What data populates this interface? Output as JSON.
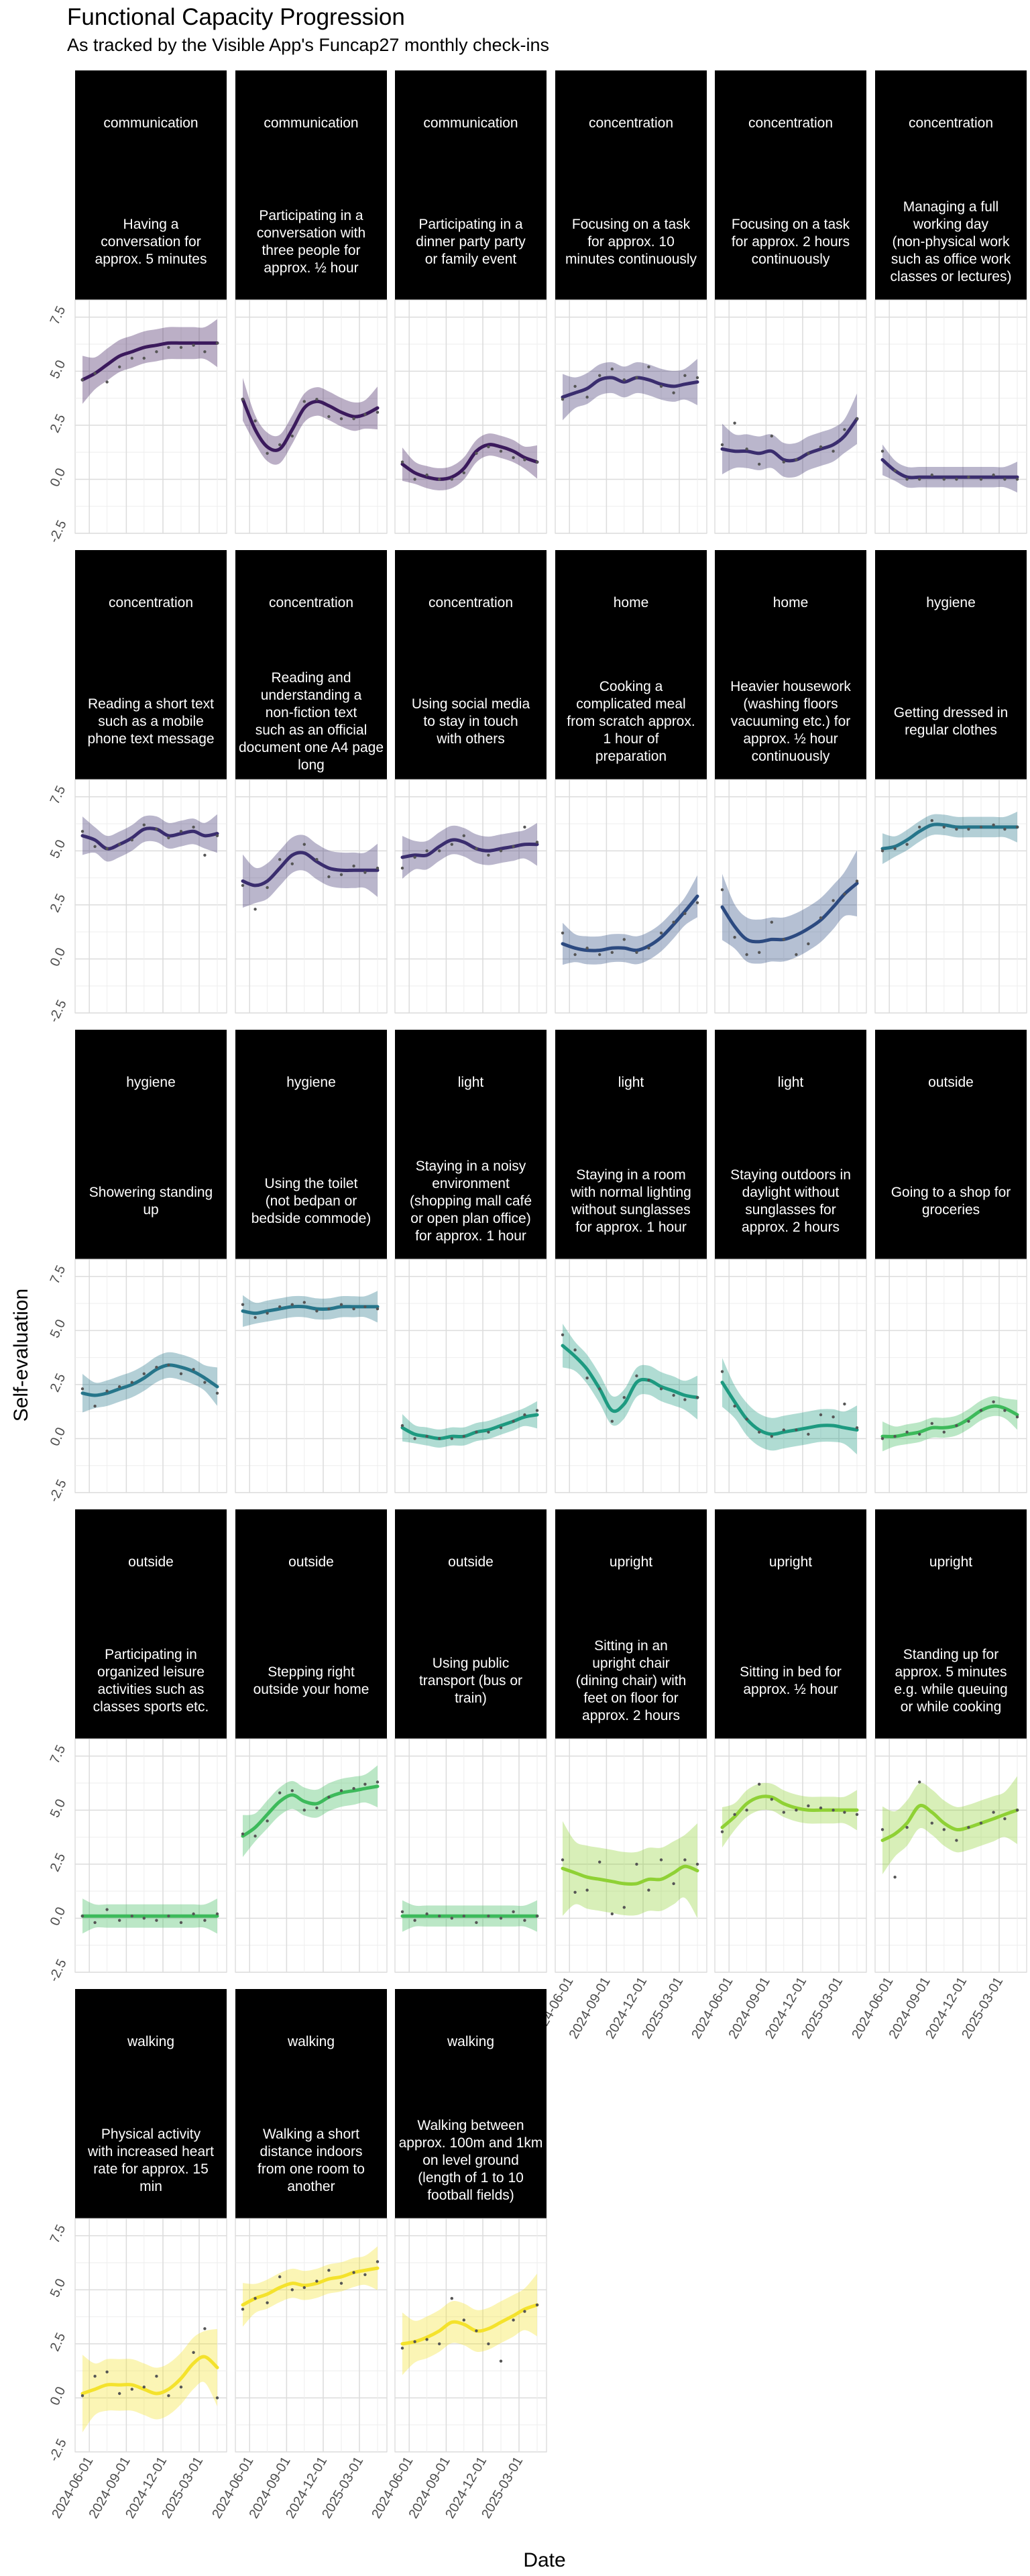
{
  "chart_data": {
    "type": "line",
    "title": "Functional Capacity Progression",
    "subtitle": "As tracked by the Visible App's Funcap27 monthly check-ins",
    "xlabel": "Date",
    "ylabel": "Self-evaluation",
    "ylim": [
      -2.5,
      8.3
    ],
    "y_ticks": [
      "-2.5",
      "0.0",
      "2.5",
      "5.0",
      "7.5"
    ],
    "x_ticks": [
      "2024-06-01",
      "2024-09-01",
      "2024-12-01",
      "2025-03-01"
    ],
    "x_dates": [
      "2024-05-15",
      "2024-06-15",
      "2024-07-15",
      "2024-08-15",
      "2024-09-15",
      "2024-10-15",
      "2024-11-15",
      "2024-12-15",
      "2025-01-15",
      "2025-02-15",
      "2025-03-15",
      "2025-04-15"
    ],
    "colors": {
      "communication": "#3b1a5c",
      "concentration": "#3a2d6e",
      "home": "#2c4a80",
      "hygiene": "#26758a",
      "light": "#1d9a80",
      "outside": "#3dba5b",
      "upright": "#8fd135",
      "walking": "#f4e22c",
      "strip_background": "#000000",
      "strip_text": "#ffffff",
      "grid": "#dcdcdc"
    },
    "panels": [
      {
        "category": "communication",
        "label": "Having a conversation for approx. 5 minutes",
        "line": [
          4.6,
          4.9,
          5.3,
          5.7,
          5.9,
          6.1,
          6.2,
          6.3,
          6.3,
          6.3,
          6.3,
          6.3
        ],
        "points": [
          4.6,
          4.9,
          4.5,
          5.2,
          5.6,
          5.6,
          5.9,
          6.1,
          6.1,
          6.2,
          5.9,
          6.3
        ]
      },
      {
        "category": "communication",
        "label": "Participating in a conversation with three people for approx. ½ hour",
        "line": [
          3.7,
          2.3,
          1.5,
          1.4,
          2.3,
          3.3,
          3.6,
          3.4,
          3.1,
          2.9,
          3.0,
          3.3
        ],
        "points": [
          3.7,
          2.7,
          1.2,
          1.6,
          2.0,
          3.6,
          3.7,
          2.9,
          2.8,
          2.8,
          3.0,
          3.1
        ]
      },
      {
        "category": "communication",
        "label": "Participating in a dinner party party or family event",
        "line": [
          0.7,
          0.3,
          0.1,
          0.0,
          0.1,
          0.5,
          1.3,
          1.6,
          1.5,
          1.3,
          1.0,
          0.8
        ],
        "points": [
          0.8,
          0.0,
          0.2,
          0.0,
          0.0,
          0.3,
          1.2,
          1.5,
          1.3,
          1.0,
          0.9,
          0.8
        ]
      },
      {
        "category": "concentration",
        "label": "Focusing on a task for approx. 10 minutes continuously",
        "line": [
          3.8,
          4.0,
          4.2,
          4.6,
          4.7,
          4.5,
          4.7,
          4.6,
          4.4,
          4.3,
          4.4,
          4.5
        ],
        "points": [
          3.7,
          4.3,
          3.8,
          4.8,
          5.1,
          4.6,
          4.7,
          5.2,
          4.3,
          4.0,
          4.8,
          4.7
        ]
      },
      {
        "category": "concentration",
        "label": "Focusing on a task for approx. 2 hours continuously",
        "line": [
          1.4,
          1.3,
          1.3,
          1.2,
          1.3,
          0.9,
          0.9,
          1.2,
          1.4,
          1.6,
          2.0,
          2.8
        ],
        "points": [
          1.6,
          2.6,
          1.4,
          0.7,
          2.0,
          0.8,
          0.9,
          1.2,
          1.5,
          1.3,
          2.3,
          2.8
        ]
      },
      {
        "category": "concentration",
        "label": "Managing a full working day (non-physical work such as office work classes or lectures)",
        "line": [
          0.9,
          0.4,
          0.1,
          0.1,
          0.1,
          0.1,
          0.1,
          0.1,
          0.1,
          0.1,
          0.1,
          0.1
        ],
        "points": [
          1.3,
          0.4,
          0.0,
          0.0,
          0.2,
          0.0,
          0.0,
          0.1,
          0.0,
          0.2,
          0.0,
          0.0
        ]
      },
      {
        "category": "concentration",
        "label": "Reading a short text such as a mobile phone text message",
        "line": [
          5.7,
          5.5,
          5.1,
          5.3,
          5.6,
          6.0,
          6.0,
          5.7,
          5.8,
          5.9,
          5.7,
          5.8
        ],
        "points": [
          5.9,
          5.2,
          5.1,
          5.3,
          5.5,
          6.2,
          6.0,
          5.6,
          5.9,
          6.1,
          4.8,
          5.7
        ]
      },
      {
        "category": "concentration",
        "label": "Reading and understanding a non-fiction text such as an official document one A4 page long",
        "line": [
          3.6,
          3.4,
          3.6,
          4.2,
          4.8,
          4.9,
          4.5,
          4.2,
          4.1,
          4.1,
          4.1,
          4.1
        ],
        "points": [
          3.4,
          2.3,
          3.3,
          4.6,
          4.4,
          5.3,
          4.6,
          3.8,
          3.9,
          4.3,
          4.0,
          4.2
        ]
      },
      {
        "category": "concentration",
        "label": "Using social media to stay in touch with others",
        "line": [
          4.7,
          4.8,
          4.8,
          5.2,
          5.5,
          5.4,
          5.1,
          5.0,
          5.1,
          5.2,
          5.3,
          5.3
        ],
        "points": [
          4.2,
          4.7,
          5.0,
          5.0,
          5.3,
          5.7,
          5.1,
          4.8,
          5.0,
          5.2,
          6.1,
          5.4
        ]
      },
      {
        "category": "home",
        "label": "Cooking a complicated meal from scratch approx. 1 hour of preparation",
        "line": [
          0.7,
          0.5,
          0.4,
          0.4,
          0.5,
          0.5,
          0.4,
          0.6,
          1.0,
          1.6,
          2.2,
          2.9
        ],
        "points": [
          1.2,
          0.2,
          0.5,
          0.2,
          0.3,
          0.9,
          0.3,
          0.5,
          1.2,
          1.7,
          2.1,
          2.6
        ]
      },
      {
        "category": "home",
        "label": "Heavier housework (washing floors vacuuming etc.) for approx. ½ hour continuously",
        "line": [
          2.4,
          1.5,
          0.9,
          0.8,
          0.9,
          0.9,
          1.1,
          1.4,
          1.8,
          2.4,
          3.0,
          3.5
        ],
        "points": [
          3.2,
          1.0,
          0.2,
          0.3,
          1.7,
          0.9,
          0.2,
          0.7,
          1.9,
          2.7,
          3.0,
          3.6
        ]
      },
      {
        "category": "hygiene",
        "label": "Getting dressed in regular clothes",
        "line": [
          5.1,
          5.2,
          5.5,
          5.9,
          6.2,
          6.2,
          6.1,
          6.1,
          6.1,
          6.1,
          6.1,
          6.1
        ],
        "points": [
          5.0,
          5.1,
          5.3,
          6.1,
          6.4,
          6.1,
          6.0,
          6.0,
          6.1,
          6.2,
          6.0,
          6.1
        ]
      },
      {
        "category": "hygiene",
        "label": "Showering standing up",
        "line": [
          2.1,
          2.0,
          2.1,
          2.3,
          2.5,
          2.8,
          3.2,
          3.4,
          3.3,
          3.1,
          2.8,
          2.4
        ],
        "points": [
          2.3,
          1.5,
          2.2,
          2.4,
          2.6,
          3.0,
          3.3,
          3.4,
          3.0,
          3.2,
          2.6,
          2.1
        ]
      },
      {
        "category": "hygiene",
        "label": "Using the toilet (not bedpan or bedside commode)",
        "line": [
          5.9,
          5.8,
          5.9,
          6.0,
          6.1,
          6.1,
          6.0,
          6.0,
          6.1,
          6.1,
          6.1,
          6.1
        ],
        "points": [
          6.2,
          5.6,
          5.8,
          6.1,
          6.2,
          6.3,
          5.9,
          6.0,
          6.2,
          6.0,
          6.1,
          6.0
        ]
      },
      {
        "category": "light",
        "label": "Staying in a noisy environment (shopping mall café or open plan office) for approx. 1 hour",
        "line": [
          0.5,
          0.2,
          0.1,
          0.0,
          0.1,
          0.1,
          0.3,
          0.4,
          0.6,
          0.8,
          1.0,
          1.1
        ],
        "points": [
          0.6,
          0.0,
          0.1,
          0.0,
          0.0,
          0.1,
          0.3,
          0.3,
          0.5,
          0.8,
          1.1,
          1.3
        ]
      },
      {
        "category": "light",
        "label": "Staying in a room with normal lighting without sunglasses for approx. 1 hour",
        "line": [
          4.3,
          3.8,
          3.2,
          2.3,
          1.3,
          1.6,
          2.6,
          2.7,
          2.4,
          2.2,
          2.0,
          1.9
        ],
        "points": [
          4.8,
          4.1,
          2.8,
          2.3,
          0.8,
          1.9,
          2.9,
          2.7,
          2.3,
          2.0,
          1.8,
          1.9
        ]
      },
      {
        "category": "light",
        "label": "Staying outdoors in daylight without sunglasses for approx. 2 hours",
        "line": [
          2.6,
          1.7,
          0.9,
          0.4,
          0.2,
          0.3,
          0.4,
          0.5,
          0.6,
          0.6,
          0.5,
          0.4
        ],
        "points": [
          3.1,
          1.5,
          0.9,
          0.3,
          0.1,
          0.4,
          0.4,
          0.2,
          1.1,
          1.0,
          1.6,
          0.5
        ]
      },
      {
        "category": "outside",
        "label": "Going to a shop for groceries",
        "line": [
          0.1,
          0.1,
          0.2,
          0.3,
          0.5,
          0.5,
          0.6,
          0.9,
          1.3,
          1.5,
          1.4,
          1.1
        ],
        "points": [
          0.0,
          0.1,
          0.3,
          0.2,
          0.7,
          0.3,
          0.6,
          0.8,
          1.3,
          1.7,
          1.3,
          1.0
        ]
      },
      {
        "category": "outside",
        "label": "Participating in organized leisure activities such as classes sports etc.",
        "line": [
          0.1,
          0.1,
          0.1,
          0.1,
          0.1,
          0.1,
          0.1,
          0.1,
          0.1,
          0.1,
          0.1,
          0.1
        ],
        "points": [
          0.1,
          -0.2,
          0.4,
          -0.1,
          0.1,
          0.0,
          -0.1,
          0.1,
          -0.2,
          0.2,
          -0.1,
          0.2
        ]
      },
      {
        "category": "outside",
        "label": "Stepping right outside your home",
        "line": [
          3.8,
          4.2,
          4.8,
          5.4,
          5.7,
          5.4,
          5.3,
          5.6,
          5.8,
          5.9,
          6.0,
          6.1
        ],
        "points": [
          3.9,
          3.8,
          4.5,
          5.8,
          5.9,
          5.0,
          5.1,
          5.6,
          5.9,
          6.0,
          6.2,
          6.3
        ]
      },
      {
        "category": "outside",
        "label": "Using public transport (bus or train)",
        "line": [
          0.1,
          0.1,
          0.1,
          0.1,
          0.1,
          0.1,
          0.1,
          0.1,
          0.1,
          0.1,
          0.1,
          0.1
        ],
        "points": [
          0.3,
          -0.1,
          0.2,
          0.1,
          0.0,
          0.1,
          -0.2,
          0.1,
          0.0,
          0.3,
          -0.1,
          0.1
        ]
      },
      {
        "category": "upright",
        "label": "Sitting in an upright chair (dining chair) with feet on floor for approx. 2 hours",
        "line": [
          2.3,
          2.1,
          1.9,
          1.8,
          1.7,
          1.6,
          1.6,
          1.8,
          1.8,
          2.1,
          2.4,
          2.2
        ],
        "points": [
          2.7,
          1.2,
          1.3,
          2.6,
          0.2,
          0.5,
          2.5,
          1.3,
          2.7,
          1.6,
          2.7,
          2.5
        ]
      },
      {
        "category": "upright",
        "label": "Sitting in bed for approx. ½ hour",
        "line": [
          4.2,
          4.7,
          5.3,
          5.6,
          5.6,
          5.3,
          5.1,
          5.0,
          5.0,
          5.0,
          5.0,
          5.0
        ],
        "points": [
          4.0,
          4.8,
          5.0,
          6.2,
          5.5,
          4.9,
          5.0,
          5.2,
          5.1,
          5.0,
          4.9,
          4.8
        ]
      },
      {
        "category": "upright",
        "label": "Standing up for approx. 5 minutes e.g. while queuing or while cooking",
        "line": [
          3.6,
          3.9,
          4.4,
          5.2,
          4.9,
          4.4,
          4.1,
          4.2,
          4.4,
          4.6,
          4.8,
          5.0
        ],
        "points": [
          4.1,
          1.9,
          4.2,
          6.3,
          4.4,
          4.1,
          3.6,
          4.2,
          4.4,
          4.9,
          4.6,
          5.0
        ]
      },
      {
        "category": "walking",
        "label": "Physical activity with increased heart rate for approx. 15 min",
        "line": [
          0.2,
          0.4,
          0.6,
          0.6,
          0.6,
          0.4,
          0.2,
          0.4,
          0.9,
          1.6,
          1.9,
          1.4
        ],
        "points": [
          0.1,
          1.0,
          1.2,
          0.2,
          0.4,
          0.5,
          1.0,
          0.1,
          0.5,
          2.1,
          3.2,
          0.0
        ]
      },
      {
        "category": "walking",
        "label": "Walking a short distance indoors from one room to another",
        "line": [
          4.3,
          4.6,
          4.8,
          5.1,
          5.3,
          5.2,
          5.3,
          5.5,
          5.6,
          5.8,
          5.9,
          6.0
        ],
        "points": [
          4.1,
          4.6,
          4.4,
          5.6,
          5.0,
          5.1,
          5.4,
          5.9,
          5.3,
          5.8,
          5.7,
          6.3
        ]
      },
      {
        "category": "walking",
        "label": "Walking between approx. 100m and 1km on level ground (length of 1 to 10 football fields)",
        "line": [
          2.5,
          2.6,
          2.8,
          3.1,
          3.5,
          3.4,
          3.1,
          3.2,
          3.5,
          3.8,
          4.1,
          4.3
        ],
        "points": [
          2.3,
          2.6,
          2.7,
          2.5,
          4.6,
          3.6,
          3.1,
          2.5,
          1.7,
          3.6,
          4.0,
          4.3
        ]
      }
    ]
  }
}
